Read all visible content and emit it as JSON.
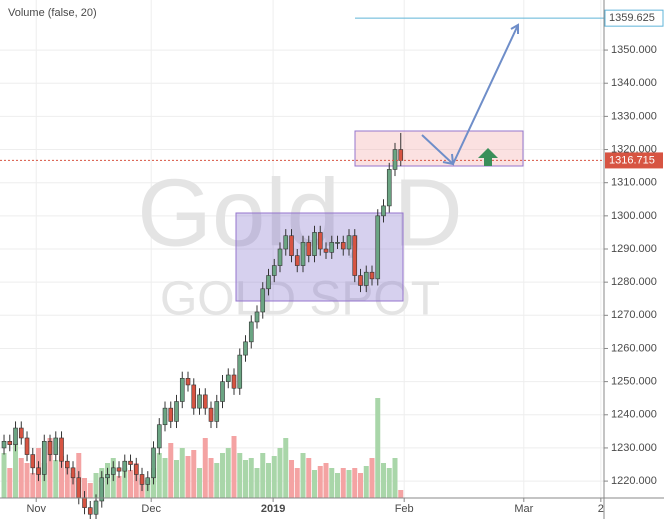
{
  "chart_data": {
    "type": "candlestick",
    "title": "Gold, D",
    "subtitle": "GOLD SPOT",
    "volume_legend": "Volume (false, 20)",
    "up_color": "#6ba583",
    "down_color": "#d75442",
    "volume_up_color": "#a9d6a9",
    "volume_down_color": "#f4a3a3",
    "open": [
      1230,
      1232,
      1231,
      1236,
      1233,
      1228,
      1224,
      1222,
      1232,
      1228,
      1233,
      1226,
      1224,
      1221,
      1215,
      1212,
      1210,
      1214,
      1221,
      1222,
      1224,
      1223,
      1226,
      1225,
      1222,
      1219,
      1221,
      1230,
      1237,
      1242,
      1238,
      1244,
      1251,
      1249,
      1242,
      1246,
      1242,
      1238,
      1244,
      1250,
      1252,
      1248,
      1258,
      1262,
      1268,
      1271,
      1278,
      1282,
      1285,
      1290,
      1294,
      1288,
      1285,
      1292,
      1288,
      1295,
      1290,
      1289,
      1292,
      1292,
      1290,
      1294,
      1282,
      1279,
      1283,
      1281,
      1300,
      1303,
      1314,
      1320
    ],
    "high": [
      1234,
      1234,
      1238,
      1238,
      1235,
      1230,
      1226,
      1234,
      1234,
      1235,
      1235,
      1228,
      1226,
      1223,
      1217,
      1214,
      1216,
      1223,
      1224,
      1226,
      1226,
      1228,
      1228,
      1227,
      1224,
      1223,
      1232,
      1239,
      1244,
      1244,
      1246,
      1253,
      1253,
      1251,
      1248,
      1248,
      1244,
      1246,
      1252,
      1254,
      1254,
      1260,
      1264,
      1270,
      1273,
      1280,
      1284,
      1287,
      1292,
      1296,
      1296,
      1290,
      1294,
      1294,
      1297,
      1297,
      1292,
      1294,
      1294,
      1294,
      1296,
      1296,
      1284,
      1285,
      1285,
      1302,
      1305,
      1316,
      1322,
      1325
    ],
    "low": [
      1228,
      1229,
      1229,
      1231,
      1226,
      1222,
      1220,
      1220,
      1226,
      1226,
      1224,
      1222,
      1219,
      1213,
      1210,
      1208,
      1208,
      1212,
      1219,
      1220,
      1221,
      1221,
      1223,
      1220,
      1217,
      1217,
      1219,
      1228,
      1235,
      1236,
      1236,
      1242,
      1247,
      1240,
      1240,
      1240,
      1236,
      1236,
      1242,
      1248,
      1246,
      1246,
      1256,
      1260,
      1266,
      1269,
      1276,
      1280,
      1283,
      1288,
      1286,
      1283,
      1283,
      1286,
      1286,
      1288,
      1287,
      1287,
      1290,
      1288,
      1288,
      1280,
      1277,
      1277,
      1279,
      1279,
      1298,
      1301,
      1312,
      1315
    ],
    "close": [
      1232,
      1231,
      1236,
      1233,
      1228,
      1224,
      1222,
      1232,
      1228,
      1233,
      1226,
      1224,
      1221,
      1215,
      1212,
      1210,
      1214,
      1221,
      1222,
      1224,
      1223,
      1226,
      1225,
      1222,
      1219,
      1221,
      1230,
      1237,
      1242,
      1238,
      1244,
      1251,
      1249,
      1242,
      1246,
      1242,
      1238,
      1244,
      1250,
      1252,
      1248,
      1258,
      1262,
      1268,
      1271,
      1278,
      1282,
      1285,
      1290,
      1294,
      1288,
      1285,
      1292,
      1288,
      1295,
      1290,
      1289,
      1292,
      1292,
      1290,
      1294,
      1282,
      1279,
      1283,
      1281,
      1300,
      1303,
      1314,
      1320,
      1316.715
    ],
    "volume": [
      45,
      30,
      55,
      40,
      35,
      25,
      50,
      35,
      60,
      38,
      42,
      30,
      25,
      45,
      20,
      15,
      25,
      30,
      35,
      40,
      22,
      30,
      28,
      35,
      20,
      18,
      30,
      45,
      40,
      55,
      38,
      50,
      42,
      48,
      30,
      60,
      40,
      35,
      45,
      50,
      62,
      45,
      38,
      40,
      30,
      45,
      35,
      42,
      50,
      60,
      38,
      30,
      45,
      40,
      28,
      32,
      35,
      30,
      25,
      30,
      28,
      30,
      25,
      32,
      40,
      100,
      35,
      30,
      40,
      8
    ],
    "volume_lim": [
      0,
      100
    ],
    "level_line": 1359.625,
    "xlim": [
      -0.7,
      104.35
    ],
    "xticks": [
      {
        "value": 5.6,
        "label": "Nov"
      },
      {
        "value": 25.6,
        "label": "Dec"
      },
      {
        "value": 46.8,
        "label": "2019"
      },
      {
        "value": 69.6,
        "label": "Feb"
      },
      {
        "value": 90.4,
        "label": "Mar"
      },
      {
        "value": 103.8,
        "label": "2"
      }
    ],
    "ylim": [
      1214.9,
      1365.1
    ],
    "yticks": [
      {
        "value": 1220,
        "label": "1220.000"
      },
      {
        "value": 1230,
        "label": "1230.000"
      },
      {
        "value": 1240,
        "label": "1240.000"
      },
      {
        "value": 1250,
        "label": "1250.000"
      },
      {
        "value": 1260,
        "label": "1260.000"
      },
      {
        "value": 1270,
        "label": "1270.000"
      },
      {
        "value": 1280,
        "label": "1280.000"
      },
      {
        "value": 1290,
        "label": "1290.000"
      },
      {
        "value": 1300,
        "label": "1300.000"
      },
      {
        "value": 1310,
        "label": "1310.000"
      },
      {
        "value": 1320,
        "label": "1320.000"
      },
      {
        "value": 1330,
        "label": "1330.000"
      },
      {
        "value": 1340,
        "label": "1340.000"
      },
      {
        "value": 1350,
        "label": "1350.000"
      }
    ],
    "grid": true
  }
}
